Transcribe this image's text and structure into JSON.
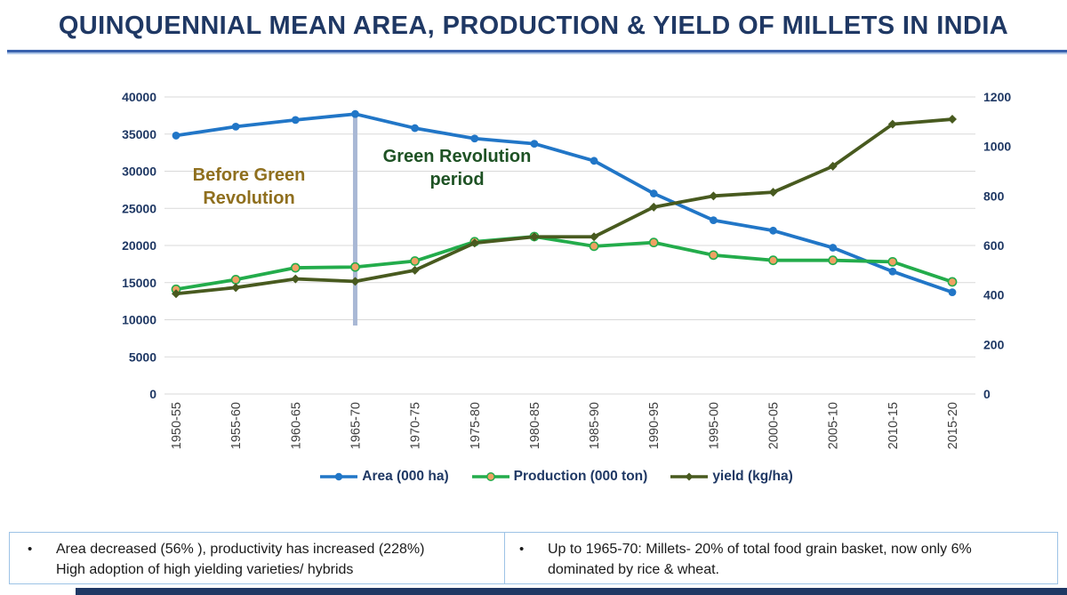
{
  "title": "QUINQUENNIAL MEAN AREA, PRODUCTION & YIELD OF MILLETS IN INDIA",
  "chart_data": {
    "type": "line",
    "categories": [
      "1950-55",
      "1955-60",
      "1960-65",
      "1965-70",
      "1970-75",
      "1975-80",
      "1980-85",
      "1985-90",
      "1990-95",
      "1995-00",
      "2000-05",
      "2005-10",
      "2010-15",
      "2015-20"
    ],
    "series": [
      {
        "name": "Area (000 ha)",
        "axis": "left",
        "color": "#2176C7",
        "marker": "circle",
        "values": [
          34800,
          36000,
          36900,
          37700,
          35800,
          34400,
          33700,
          31400,
          27000,
          23400,
          22000,
          19700,
          16500,
          13700
        ]
      },
      {
        "name": "Production (000 ton)",
        "axis": "left",
        "color": "#23AC4B",
        "marker": "circle-orange",
        "marker_fill": "#F0A163",
        "values": [
          14100,
          15400,
          17000,
          17100,
          17900,
          20500,
          21200,
          19900,
          20400,
          18700,
          18000,
          18000,
          17800,
          15100
        ]
      },
      {
        "name": "yield (kg/ha)",
        "axis": "right",
        "color": "#485A1F",
        "marker": "diamond",
        "values": [
          405,
          430,
          465,
          455,
          500,
          610,
          635,
          635,
          755,
          800,
          815,
          920,
          1090,
          1110
        ]
      }
    ],
    "left_axis": {
      "min": 0,
      "max": 40000,
      "step": 5000
    },
    "right_axis": {
      "min": 0,
      "max": 1200,
      "step": 200
    },
    "grid": true,
    "legend_position": "bottom",
    "annotations": [
      {
        "lines": [
          "Before Green",
          "Revolution"
        ],
        "color": "#8F6F1E",
        "x": 280,
        "y": 203,
        "line_height": 26
      },
      {
        "lines": [
          "Green Revolution",
          "period"
        ],
        "color": "#1E5224",
        "x": 514,
        "y": 182,
        "line_height": 26
      }
    ],
    "divider": {
      "at_category": "1965-70",
      "color": "#A9B8D5"
    }
  },
  "notes": {
    "bullet": "•",
    "items": [
      {
        "lines": [
          "Area decreased (56% ), productivity has increased (228%)",
          "High adoption of high yielding varieties/ hybrids"
        ]
      },
      {
        "lines": [
          "Up to 1965-70: Millets- 20% of total food grain basket, now only 6%",
          "dominated by rice & wheat."
        ]
      }
    ]
  },
  "colors": {
    "title_text": "#1F3864",
    "axis_left_text": "#1F3864",
    "x_tick_text": "#404040",
    "gridline": "#D9D9D9",
    "legend_text": "#1F3864",
    "note_border": "#9DC3E6",
    "note_text": "#1A1A1A",
    "underline_dark": "#3A62AE",
    "underline_light": "#B0C7E8",
    "footer_bar": "#1F3864"
  }
}
